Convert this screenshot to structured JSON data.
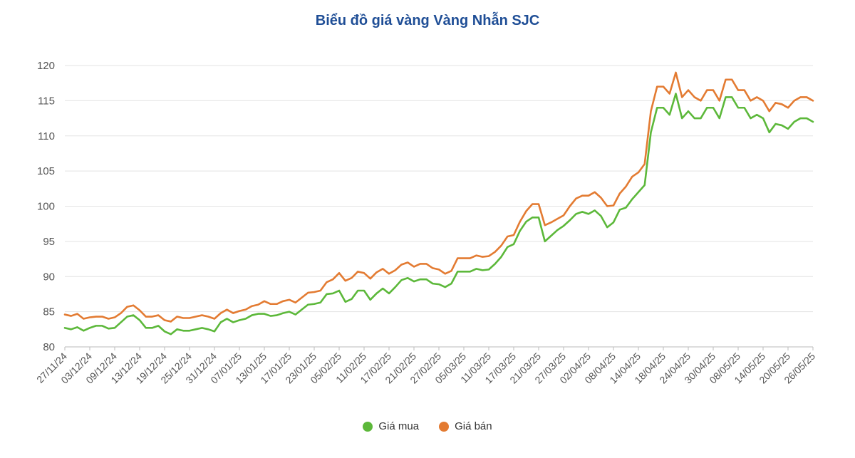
{
  "chart_data": {
    "type": "line",
    "title": "Biểu đồ giá vàng Vàng Nhẫn SJC",
    "xlabel": "",
    "ylabel": "",
    "ylim": [
      80,
      120
    ],
    "yticks": [
      80,
      85,
      90,
      95,
      100,
      105,
      110,
      115,
      120
    ],
    "grid": true,
    "legend_position": "bottom-center",
    "x_tick_labels": [
      "27/11/24",
      "03/12/24",
      "09/12/24",
      "13/12/24",
      "19/12/24",
      "25/12/24",
      "31/12/24",
      "07/01/25",
      "13/01/25",
      "17/01/25",
      "23/01/25",
      "05/02/25",
      "11/02/25",
      "17/02/25",
      "21/02/25",
      "27/02/25",
      "05/03/25",
      "11/03/25",
      "17/03/25",
      "21/03/25",
      "27/03/25",
      "02/04/25",
      "08/04/25",
      "14/04/25",
      "18/04/25",
      "24/04/25",
      "30/04/25",
      "08/05/25",
      "14/05/25",
      "20/05/25",
      "26/05/25"
    ],
    "series": [
      {
        "name": "Giá mua",
        "color": "#5cb83a",
        "values": [
          82.7,
          82.5,
          82.8,
          82.3,
          82.7,
          83.0,
          83.0,
          82.6,
          82.7,
          83.5,
          84.3,
          84.5,
          83.8,
          82.7,
          82.7,
          83.0,
          82.2,
          81.8,
          82.5,
          82.3,
          82.3,
          82.5,
          82.7,
          82.5,
          82.2,
          83.5,
          84.0,
          83.5,
          83.8,
          84.0,
          84.5,
          84.7,
          84.7,
          84.4,
          84.5,
          84.8,
          85.0,
          84.6,
          85.3,
          86.0,
          86.1,
          86.3,
          87.5,
          87.6,
          88.0,
          86.4,
          86.8,
          88.0,
          88.0,
          86.7,
          87.6,
          88.3,
          87.6,
          88.5,
          89.5,
          89.8,
          89.3,
          89.6,
          89.6,
          89.0,
          88.9,
          88.5,
          89.0,
          90.7,
          90.7,
          90.7,
          91.1,
          90.9,
          91.0,
          91.8,
          92.8,
          94.2,
          94.6,
          96.5,
          97.8,
          98.4,
          98.4,
          95.0,
          95.8,
          96.6,
          97.2,
          98.0,
          98.9,
          99.2,
          98.9,
          99.4,
          98.6,
          97.0,
          97.7,
          99.5,
          99.8,
          101.0,
          102.0,
          103.0,
          110.5,
          114.0,
          114.0,
          113.0,
          116.0,
          112.5,
          113.5,
          112.5,
          112.5,
          114.0,
          114.0,
          112.5,
          115.5,
          115.5,
          114.0,
          114.0,
          112.5,
          113.0,
          112.5,
          110.5,
          111.7,
          111.5,
          111.0,
          112.0,
          112.5,
          112.5,
          112.0
        ]
      },
      {
        "name": "Giá bán",
        "color": "#e37b32",
        "values": [
          84.6,
          84.4,
          84.7,
          84.0,
          84.2,
          84.3,
          84.3,
          84.0,
          84.2,
          84.8,
          85.7,
          85.9,
          85.2,
          84.3,
          84.3,
          84.5,
          83.8,
          83.6,
          84.3,
          84.1,
          84.1,
          84.3,
          84.5,
          84.3,
          84.0,
          84.8,
          85.3,
          84.8,
          85.1,
          85.3,
          85.8,
          86.0,
          86.5,
          86.1,
          86.1,
          86.5,
          86.7,
          86.3,
          87.0,
          87.7,
          87.8,
          88.0,
          89.2,
          89.6,
          90.5,
          89.4,
          89.8,
          90.7,
          90.5,
          89.7,
          90.6,
          91.1,
          90.4,
          90.9,
          91.7,
          92.0,
          91.4,
          91.8,
          91.8,
          91.2,
          91.0,
          90.4,
          90.8,
          92.6,
          92.6,
          92.6,
          93.0,
          92.8,
          92.9,
          93.5,
          94.4,
          95.7,
          95.9,
          97.8,
          99.3,
          100.3,
          100.3,
          97.3,
          97.7,
          98.2,
          98.7,
          100.0,
          101.1,
          101.5,
          101.5,
          102.0,
          101.2,
          100.0,
          100.1,
          101.8,
          102.8,
          104.2,
          104.8,
          106.0,
          113.5,
          117.0,
          117.0,
          116.0,
          119.0,
          115.5,
          116.5,
          115.5,
          115.0,
          116.5,
          116.5,
          115.0,
          118.0,
          118.0,
          116.5,
          116.5,
          115.0,
          115.5,
          115.0,
          113.5,
          114.7,
          114.5,
          114.0,
          115.0,
          115.5,
          115.5,
          115.0
        ]
      }
    ]
  }
}
